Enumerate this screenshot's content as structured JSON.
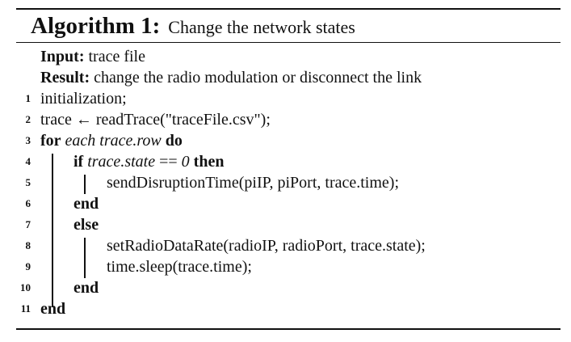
{
  "algorithm": {
    "heading": "Algorithm 1:",
    "title": "Change the network states",
    "input_label": "Input:",
    "input_text": "trace file",
    "result_label": "Result:",
    "result_text": "change the radio modulation or disconnect the link",
    "lines": [
      {
        "num": "1",
        "text": "initialization;"
      },
      {
        "num": "2",
        "text": "trace ← readTrace(\"traceFile.csv\");"
      },
      {
        "num": "3",
        "kw1": "for",
        "cond": "each trace.row",
        "kw2": "do"
      },
      {
        "num": "4",
        "kw1": "if",
        "cond": "trace.state",
        "op": "==",
        "val": "0",
        "kw2": "then"
      },
      {
        "num": "5",
        "text": "sendDisruptionTime(piIP, piPort, trace.time);"
      },
      {
        "num": "6",
        "kw1": "end"
      },
      {
        "num": "7",
        "kw1": "else"
      },
      {
        "num": "8",
        "text": "setRadioDataRate(radioIP, radioPort, trace.state);"
      },
      {
        "num": "9",
        "text": "time.sleep(trace.time);"
      },
      {
        "num": "10",
        "kw1": "end"
      },
      {
        "num": "11",
        "kw1": "end"
      }
    ]
  }
}
